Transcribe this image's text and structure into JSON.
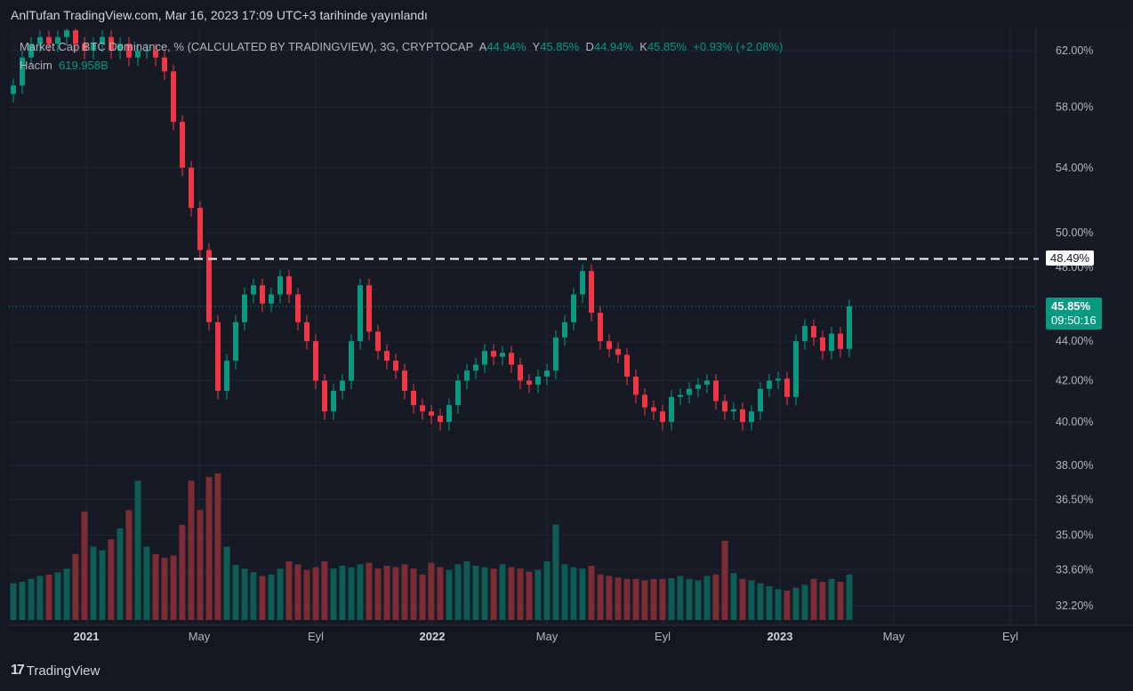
{
  "header": {
    "published": "AnlTufan TradingView.com, Mar 16, 2023 17:09 UTC+3 tarihinde yayınlandı"
  },
  "legend": {
    "symbol": "Market Cap BTC Dominance, % (CALCULATED BY TRADINGVIEW), 3G, CRYPTOCAP",
    "a_label": "A",
    "a_value": "44.94%",
    "y_label": "Y",
    "y_value": "45.85%",
    "d_label": "D",
    "d_value": "44.94%",
    "k_label": "K",
    "k_value": "45.85%",
    "change": "+0.93% (+2.08%)",
    "volume_label": "Hacim",
    "volume_value": "619.958B"
  },
  "price_tags": {
    "line_level": "48.49%",
    "last_price": "45.85%",
    "countdown": "09:50:16"
  },
  "footer": {
    "brand": "TradingView"
  },
  "colors": {
    "up": "#089981",
    "down": "#f23645",
    "background": "#161a25"
  },
  "chart_data": {
    "type": "candlestick",
    "title": "Market Cap BTC Dominance, %",
    "scale": "log",
    "y_ticks": [
      "62.00%",
      "58.00%",
      "54.00%",
      "50.00%",
      "48.00%",
      "44.00%",
      "42.00%",
      "40.00%",
      "38.00%",
      "36.50%",
      "35.00%",
      "33.60%",
      "32.20%"
    ],
    "y_tick_values": [
      62,
      58,
      54,
      50,
      48,
      44,
      42,
      40,
      38,
      36.5,
      35,
      33.6,
      32.2
    ],
    "x_ticks": [
      "2021",
      "May",
      "Eyl",
      "2022",
      "May",
      "Eyl",
      "2023",
      "May",
      "Eyl"
    ],
    "horizontal_line": 48.49,
    "last_close": 45.85,
    "closes": [
      59.5,
      61.5,
      62.5,
      63,
      62.5,
      63,
      63.5,
      62.5,
      62,
      62.5,
      63,
      62,
      62.5,
      61.5,
      62,
      62,
      61.5,
      60.5,
      57,
      54,
      51.5,
      49,
      45,
      41.5,
      43,
      45,
      46.5,
      47,
      46,
      46.5,
      47.5,
      46.5,
      45,
      44,
      42,
      40.5,
      41.5,
      42,
      44,
      47,
      44.5,
      43.5,
      43,
      42.5,
      41.5,
      40.8,
      40.5,
      40.3,
      40,
      40.8,
      42,
      42.5,
      42.8,
      43.5,
      43.2,
      43.4,
      42.8,
      42,
      41.8,
      42.2,
      42.5,
      44.2,
      45,
      46.5,
      47.8,
      45.5,
      44,
      43.6,
      43.3,
      42.2,
      41.3,
      40.7,
      40.5,
      40,
      41.2,
      41.3,
      41.6,
      41.8,
      42,
      41,
      40.5,
      40.6,
      40,
      40.5,
      41.6,
      42,
      42.1,
      41.2,
      44,
      44.8,
      44.2,
      43.5,
      44.4,
      43.6,
      45.85
    ],
    "volumes_B": [
      500,
      520,
      560,
      600,
      620,
      650,
      700,
      900,
      1480,
      1000,
      950,
      1100,
      1250,
      1500,
      1900,
      1000,
      900,
      850,
      880,
      1300,
      1900,
      1500,
      1950,
      2000,
      1000,
      750,
      700,
      650,
      600,
      620,
      700,
      800,
      760,
      680,
      720,
      800,
      700,
      740,
      720,
      760,
      780,
      700,
      740,
      720,
      760,
      700,
      620,
      780,
      720,
      680,
      760,
      800,
      740,
      720,
      700,
      760,
      720,
      700,
      660,
      680,
      800,
      1300,
      760,
      720,
      700,
      740,
      620,
      600,
      580,
      560,
      560,
      540,
      560,
      560,
      570,
      600,
      560,
      540,
      600,
      620,
      1080,
      640,
      560,
      540,
      500,
      460,
      420,
      400,
      440,
      480,
      560,
      520,
      560,
      520,
      620
    ]
  }
}
